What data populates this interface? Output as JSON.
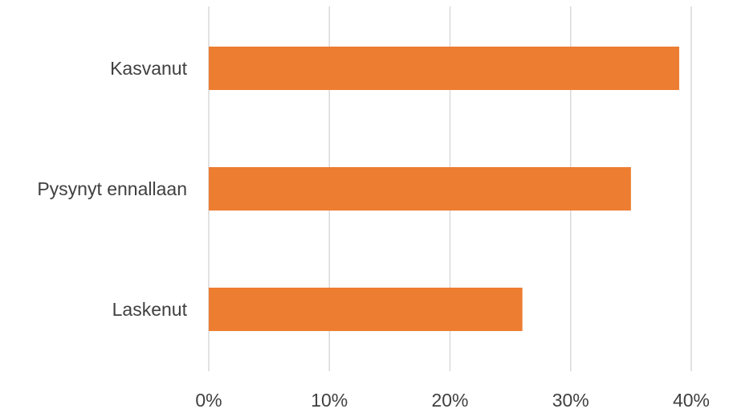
{
  "chart_data": {
    "type": "bar",
    "orientation": "horizontal",
    "categories": [
      "Kasvanut",
      "Pysynyt ennallaan",
      "Laskenut"
    ],
    "values": [
      39,
      35,
      26
    ],
    "value_unit": "%",
    "xlim": [
      0,
      40
    ],
    "x_ticks": [
      "0%",
      "10%",
      "20%",
      "30%",
      "40%"
    ],
    "title": "",
    "xlabel": "",
    "ylabel": "",
    "grid": "vertical",
    "legend": "none",
    "bar_color": "#ED7D31"
  }
}
